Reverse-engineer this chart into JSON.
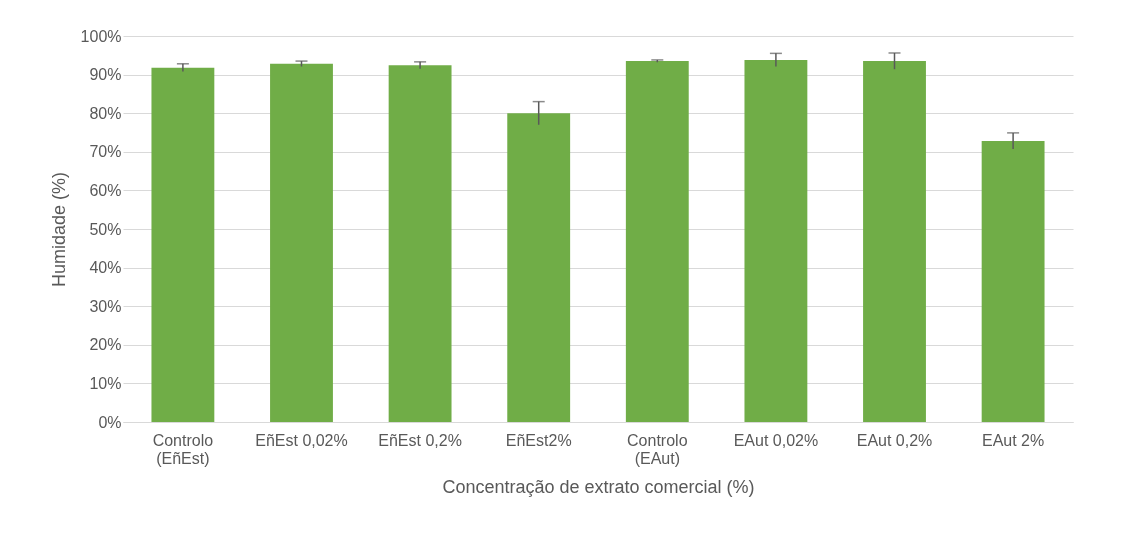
{
  "chart_data": {
    "type": "bar",
    "ylabel": "Humidade (%)",
    "xlabel": "Concentração de extrato comercial (%)",
    "categories": [
      "Controlo\n(EñEst)",
      "EñEst 0,02%",
      "EñEst 0,2%",
      "EñEst2%",
      "Controlo\n(EAut)",
      "EAut 0,02%",
      "EAut 0,2%",
      "EAut 2%"
    ],
    "values": [
      91.8,
      92.8,
      92.4,
      80.0,
      93.5,
      93.8,
      93.5,
      72.8
    ],
    "errors": [
      1.0,
      0.7,
      0.9,
      3.0,
      0.3,
      1.7,
      2.1,
      2.1
    ],
    "color": "#70ad47",
    "ylim": [
      0,
      100
    ],
    "yticks": [
      {
        "value": 0,
        "label": "0%"
      },
      {
        "value": 10,
        "label": "10%"
      },
      {
        "value": 20,
        "label": "20%"
      },
      {
        "value": 30,
        "label": "30%"
      },
      {
        "value": 40,
        "label": "40%"
      },
      {
        "value": 50,
        "label": "50%"
      },
      {
        "value": 60,
        "label": "60%"
      },
      {
        "value": 70,
        "label": "70%"
      },
      {
        "value": 80,
        "label": "80%"
      },
      {
        "value": 90,
        "label": "90%"
      },
      {
        "value": 100,
        "label": "100%"
      }
    ],
    "grid": "y"
  }
}
